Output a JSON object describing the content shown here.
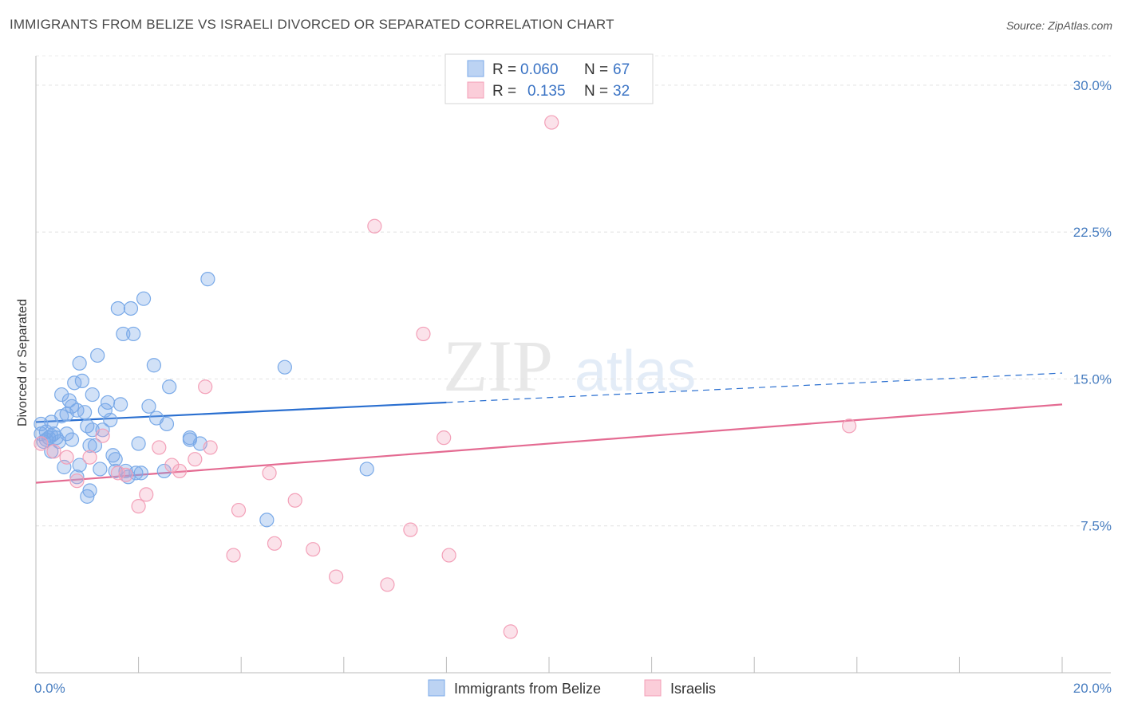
{
  "title": "IMMIGRANTS FROM BELIZE VS ISRAELI DIVORCED OR SEPARATED CORRELATION CHART",
  "source": "Source: ZipAtlas.com",
  "watermark": {
    "zip": "ZIP",
    "atlas": "atlas"
  },
  "chart_data": {
    "type": "scatter",
    "ylabel": "Divorced or Separated",
    "xlim": [
      0,
      20
    ],
    "ylim": [
      0,
      31.5
    ],
    "x_tick_labels": [
      "0.0%",
      "20.0%"
    ],
    "y_ticks": [
      7.5,
      15.0,
      22.5,
      30.0
    ],
    "y_tick_labels": [
      "7.5%",
      "15.0%",
      "22.5%",
      "30.0%"
    ],
    "grid": "horizontal dashed",
    "legend_top": {
      "rows": [
        {
          "r_label": "R =",
          "r_value": "0.060",
          "n_label": "N =",
          "n_value": "67"
        },
        {
          "r_label": "R =",
          "r_value": "0.135",
          "n_label": "N =",
          "n_value": "32"
        }
      ]
    },
    "series": [
      {
        "name": "Immigrants from Belize",
        "color": "#7aaae8",
        "line_color": "#2a6fd0",
        "trend": {
          "x0": 0,
          "y0": 12.8,
          "x_solid_end": 8.0,
          "y_solid_end": 13.8,
          "x1": 20,
          "y1": 15.3
        },
        "points": [
          [
            0.1,
            12.7
          ],
          [
            0.1,
            12.2
          ],
          [
            0.15,
            11.8
          ],
          [
            0.2,
            12.3
          ],
          [
            0.2,
            11.9
          ],
          [
            0.25,
            12.0
          ],
          [
            0.3,
            11.3
          ],
          [
            0.3,
            12.8
          ],
          [
            0.35,
            12.2
          ],
          [
            0.4,
            12.0
          ],
          [
            0.45,
            11.8
          ],
          [
            0.5,
            13.1
          ],
          [
            0.5,
            14.2
          ],
          [
            0.55,
            10.5
          ],
          [
            0.6,
            12.2
          ],
          [
            0.6,
            13.2
          ],
          [
            0.65,
            13.9
          ],
          [
            0.7,
            11.9
          ],
          [
            0.7,
            13.6
          ],
          [
            0.75,
            14.8
          ],
          [
            0.8,
            10.0
          ],
          [
            0.8,
            13.4
          ],
          [
            0.85,
            15.8
          ],
          [
            0.85,
            10.6
          ],
          [
            0.9,
            14.9
          ],
          [
            0.95,
            13.3
          ],
          [
            1.0,
            12.6
          ],
          [
            1.0,
            9.0
          ],
          [
            1.05,
            9.3
          ],
          [
            1.05,
            11.6
          ],
          [
            1.1,
            14.2
          ],
          [
            1.1,
            12.4
          ],
          [
            1.15,
            11.6
          ],
          [
            1.2,
            16.2
          ],
          [
            1.25,
            10.4
          ],
          [
            1.3,
            12.4
          ],
          [
            1.35,
            13.4
          ],
          [
            1.4,
            13.8
          ],
          [
            1.45,
            12.9
          ],
          [
            1.5,
            11.1
          ],
          [
            1.55,
            10.9
          ],
          [
            1.6,
            18.6
          ],
          [
            1.65,
            13.7
          ],
          [
            1.7,
            17.3
          ],
          [
            1.75,
            10.3
          ],
          [
            1.8,
            10.0
          ],
          [
            1.85,
            18.6
          ],
          [
            1.9,
            17.3
          ],
          [
            1.95,
            10.2
          ],
          [
            2.0,
            11.7
          ],
          [
            2.05,
            10.2
          ],
          [
            2.1,
            19.1
          ],
          [
            2.2,
            13.6
          ],
          [
            2.3,
            15.7
          ],
          [
            2.35,
            13.0
          ],
          [
            2.55,
            12.7
          ],
          [
            2.6,
            14.6
          ],
          [
            2.5,
            10.3
          ],
          [
            3.0,
            12.0
          ],
          [
            3.0,
            11.9
          ],
          [
            3.2,
            11.7
          ],
          [
            3.35,
            20.1
          ],
          [
            4.5,
            7.8
          ],
          [
            4.85,
            15.6
          ],
          [
            6.45,
            10.4
          ],
          [
            1.55,
            10.3
          ],
          [
            0.3,
            12.1
          ]
        ]
      },
      {
        "name": "Israelis",
        "color": "#f3a0b8",
        "line_color": "#e46b92",
        "trend": {
          "x0": 0,
          "y0": 9.7,
          "x1": 20,
          "y1": 13.7
        },
        "points": [
          [
            0.1,
            11.7
          ],
          [
            0.35,
            11.3
          ],
          [
            0.6,
            11.0
          ],
          [
            0.8,
            9.8
          ],
          [
            1.05,
            11.0
          ],
          [
            1.3,
            12.1
          ],
          [
            1.6,
            10.2
          ],
          [
            1.75,
            10.1
          ],
          [
            2.0,
            8.5
          ],
          [
            2.15,
            9.1
          ],
          [
            2.4,
            11.5
          ],
          [
            2.65,
            10.6
          ],
          [
            2.8,
            10.3
          ],
          [
            3.1,
            10.9
          ],
          [
            3.3,
            14.6
          ],
          [
            3.4,
            11.5
          ],
          [
            3.85,
            6.0
          ],
          [
            3.95,
            8.3
          ],
          [
            4.55,
            10.2
          ],
          [
            4.65,
            6.6
          ],
          [
            5.05,
            8.8
          ],
          [
            5.4,
            6.3
          ],
          [
            5.85,
            4.9
          ],
          [
            6.6,
            22.8
          ],
          [
            6.85,
            4.5
          ],
          [
            7.3,
            7.3
          ],
          [
            7.55,
            17.3
          ],
          [
            7.95,
            12.0
          ],
          [
            8.05,
            6.0
          ],
          [
            9.25,
            2.1
          ],
          [
            10.05,
            28.1
          ],
          [
            15.85,
            12.6
          ]
        ]
      }
    ]
  }
}
